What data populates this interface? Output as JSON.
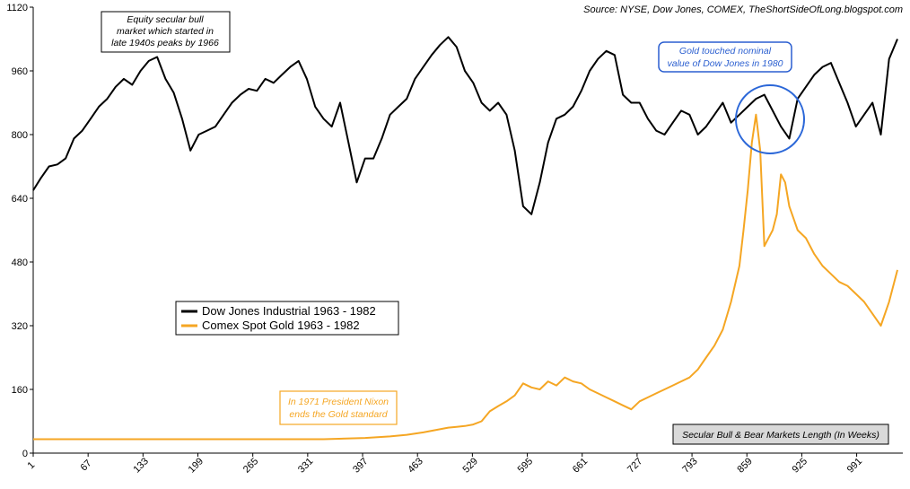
{
  "source": "Source: NYSE, Dow Jones, COMEX, TheShortSideOfLong.blogspot.com",
  "colors": {
    "dow": "#000000",
    "gold": "#f5a623",
    "circle": "#2b67d8",
    "annotation_blue": "#2b5fd0",
    "annotation_orange": "#f5a623",
    "axis_box_bg": "#d9d9d9"
  },
  "annotations": {
    "bull_market": [
      "Equity secular bull",
      "market which started in",
      "late 1940s peaks by 1966"
    ],
    "gold_touch": [
      "Gold touched nominal",
      "value of Dow Jones in 1980"
    ],
    "nixon": [
      "In 1971 President Nixon",
      "ends the Gold standard"
    ],
    "secular_box": "Secular Bull & Bear Markets Length (In Weeks)"
  },
  "chart_data": {
    "type": "line",
    "title": "",
    "xlabel": "Secular Bull & Bear Markets Length (In Weeks)",
    "ylabel": "",
    "xlim": [
      1,
      1040
    ],
    "ylim": [
      0,
      1120
    ],
    "y_ticks": [
      0,
      160,
      320,
      480,
      640,
      800,
      960,
      1120
    ],
    "x_ticks": [
      1,
      67,
      133,
      199,
      265,
      331,
      397,
      463,
      529,
      595,
      661,
      727,
      793,
      859,
      925,
      991
    ],
    "legend": "center-left",
    "series": [
      {
        "name": "Dow Jones Industrial 1963 - 1982",
        "color": "#000000",
        "x": [
          1,
          10,
          20,
          30,
          40,
          50,
          60,
          70,
          80,
          90,
          100,
          110,
          120,
          130,
          140,
          150,
          160,
          170,
          180,
          190,
          200,
          210,
          220,
          230,
          240,
          250,
          260,
          270,
          280,
          290,
          300,
          310,
          320,
          330,
          340,
          350,
          360,
          370,
          380,
          390,
          400,
          410,
          420,
          430,
          440,
          450,
          460,
          470,
          480,
          490,
          500,
          510,
          520,
          530,
          540,
          550,
          560,
          570,
          580,
          590,
          600,
          610,
          620,
          630,
          640,
          650,
          660,
          670,
          680,
          690,
          700,
          710,
          720,
          730,
          740,
          750,
          760,
          770,
          780,
          790,
          800,
          810,
          820,
          830,
          840,
          850,
          860,
          870,
          880,
          890,
          900,
          910,
          920,
          930,
          940,
          950,
          960,
          970,
          980,
          990,
          1000,
          1010,
          1020,
          1030,
          1040
        ],
        "values": [
          660,
          690,
          720,
          725,
          740,
          790,
          810,
          840,
          870,
          890,
          920,
          940,
          925,
          960,
          985,
          995,
          940,
          905,
          840,
          760,
          800,
          810,
          820,
          850,
          880,
          900,
          915,
          910,
          940,
          930,
          950,
          970,
          985,
          940,
          870,
          840,
          820,
          880,
          780,
          680,
          740,
          740,
          790,
          850,
          870,
          890,
          940,
          970,
          1000,
          1025,
          1045,
          1020,
          960,
          930,
          880,
          860,
          880,
          850,
          760,
          620,
          600,
          680,
          780,
          840,
          850,
          870,
          910,
          960,
          990,
          1010,
          1000,
          900,
          880,
          880,
          840,
          810,
          800,
          830,
          860,
          850,
          800,
          820,
          850,
          880,
          830,
          850,
          870,
          890,
          900,
          860,
          820,
          790,
          890,
          920,
          950,
          970,
          980,
          930,
          880,
          820,
          850,
          880,
          800,
          990,
          1040
        ],
        "y_ticks": "shared"
      },
      {
        "name": "Comex Spot Gold 1963 - 1982",
        "color": "#f5a623",
        "x": [
          1,
          50,
          100,
          150,
          200,
          250,
          300,
          350,
          400,
          430,
          450,
          470,
          490,
          500,
          510,
          520,
          530,
          540,
          550,
          560,
          570,
          580,
          590,
          600,
          610,
          620,
          630,
          640,
          650,
          660,
          670,
          680,
          690,
          700,
          710,
          720,
          730,
          740,
          750,
          760,
          770,
          780,
          790,
          800,
          810,
          820,
          830,
          840,
          850,
          855,
          860,
          865,
          870,
          875,
          880,
          885,
          890,
          895,
          900,
          905,
          910,
          920,
          930,
          940,
          950,
          960,
          970,
          980,
          990,
          1000,
          1010,
          1020,
          1030,
          1040
        ],
        "values": [
          35,
          35,
          35,
          35,
          35,
          35,
          35,
          35,
          38,
          42,
          46,
          52,
          60,
          64,
          66,
          68,
          72,
          80,
          105,
          118,
          130,
          145,
          175,
          165,
          160,
          180,
          170,
          190,
          180,
          175,
          160,
          150,
          140,
          130,
          120,
          110,
          130,
          140,
          150,
          160,
          170,
          180,
          190,
          210,
          240,
          270,
          310,
          380,
          470,
          560,
          660,
          780,
          850,
          760,
          520,
          540,
          560,
          600,
          700,
          680,
          620,
          560,
          540,
          500,
          470,
          450,
          430,
          420,
          400,
          380,
          350,
          320,
          380,
          460
        ]
      }
    ]
  }
}
